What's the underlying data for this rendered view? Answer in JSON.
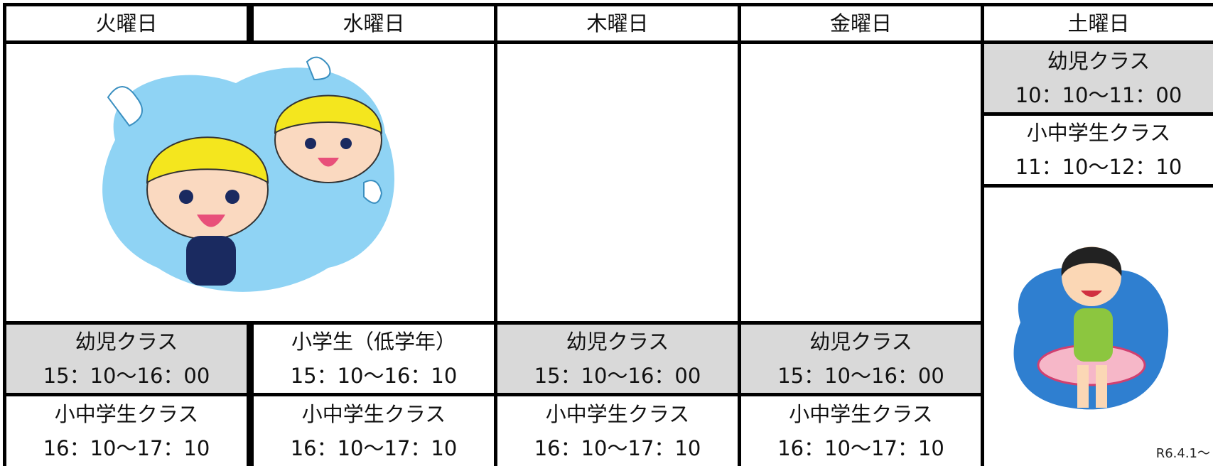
{
  "header": {
    "days": [
      "火曜日",
      "水曜日",
      "木曜日",
      "金曜日",
      "土曜日"
    ]
  },
  "weekday_classes": [
    [
      {
        "name": "幼児クラス",
        "time": "15：10～16：00"
      },
      {
        "name": "小中学生クラス",
        "time": "16：10～17：10"
      }
    ],
    [
      {
        "name": "小学生（低学年）",
        "time": "15：10～16：10"
      },
      {
        "name": "小中学生クラス",
        "time": "16：10～17：10"
      }
    ],
    [
      {
        "name": "幼児クラス",
        "time": "15：10～16：00"
      },
      {
        "name": "小中学生クラス",
        "time": "16：10～17：10"
      }
    ],
    [
      {
        "name": "幼児クラス",
        "time": "15：10～16：00"
      },
      {
        "name": "小中学生クラス",
        "time": "16：10～17：10"
      }
    ]
  ],
  "saturday": [
    {
      "name": "幼児クラス",
      "time": "10：10～11：00"
    },
    {
      "name": "小中学生クラス",
      "time": "11：10～12：10"
    }
  ],
  "note": "R6.4.1～"
}
